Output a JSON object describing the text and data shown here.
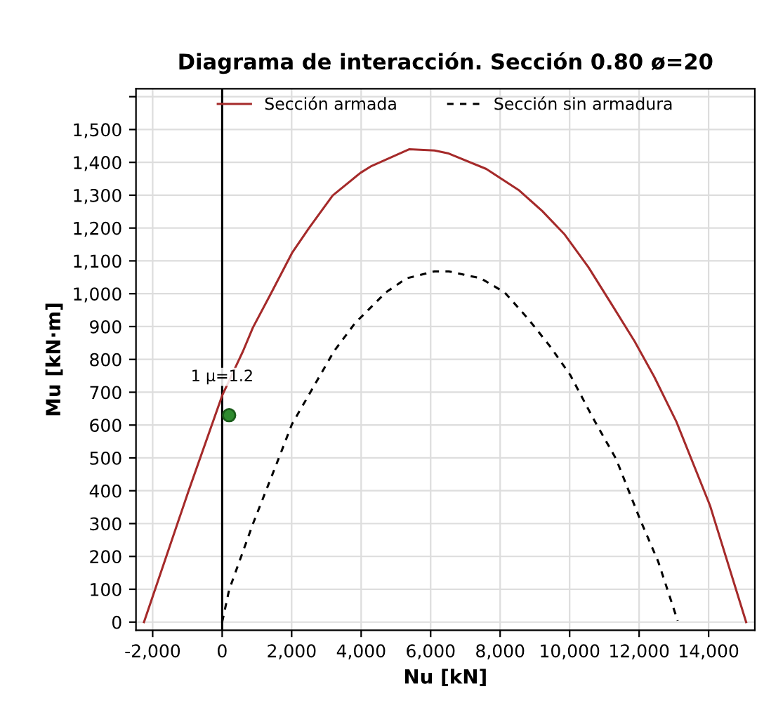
{
  "chart_data": {
    "type": "line",
    "title": "Diagrama de interacción. Sección 0.80 ø=20",
    "xlabel": "Nu [kN]",
    "ylabel": "Mu [kN·m]",
    "xlim": [
      -2480,
      15330
    ],
    "ylim": [
      -25,
      1624
    ],
    "xticks": [
      {
        "value": -2000,
        "label": "-2,000"
      },
      0,
      {
        "value": 2000,
        "label": "2,000"
      },
      {
        "value": 4000,
        "label": "4,000"
      },
      {
        "value": 6000,
        "label": "6,000"
      },
      {
        "value": 8000,
        "label": "8,000"
      },
      {
        "value": 10000,
        "label": "10,000"
      },
      {
        "value": 12000,
        "label": "12,000"
      },
      {
        "value": 14000,
        "label": "14,000"
      }
    ],
    "yticks": [
      0,
      100,
      200,
      300,
      400,
      500,
      600,
      700,
      800,
      900,
      {
        "value": 1000,
        "label": "1,000"
      },
      {
        "value": 1100,
        "label": "1,100"
      },
      {
        "value": 1200,
        "label": "1,200"
      },
      {
        "value": 1300,
        "label": "1,300"
      },
      {
        "value": 1400,
        "label": "1,400"
      },
      {
        "value": 1500,
        "label": "1,500"
      },
      {
        "value": 1600,
        "label": null
      }
    ],
    "grid": true,
    "legend": "top",
    "marker": "none",
    "ref_lines": [
      {
        "axis": "x",
        "value": 0,
        "color": "#000000",
        "line_style": "solid"
      }
    ],
    "annotations": [
      {
        "text": "1 μ=1.2",
        "x": 0,
        "y": 700
      }
    ],
    "series": [
      {
        "name": "Sección armada",
        "color": "#a52a2a",
        "line_style": "solid",
        "x": [
          -2250,
          -1287,
          -965,
          0,
          600,
          885,
          1400,
          2010,
          2500,
          3180,
          3980,
          4300,
          5390,
          6110,
          6520,
          7600,
          8530,
          9210,
          9860,
          10540,
          11220,
          11870,
          12430,
          13070,
          14040,
          15080
        ],
        "values": [
          0,
          300,
          400,
          690,
          825,
          897,
          1000,
          1124,
          1200,
          1299,
          1368,
          1389,
          1440,
          1436,
          1427,
          1380,
          1316,
          1252,
          1180,
          1081,
          966,
          855,
          748,
          611,
          355,
          0
        ]
      },
      {
        "name": "Sección sin armadura",
        "color": "#000000",
        "line_style": "dashed",
        "x": [
          0,
          200,
          885,
          1570,
          2010,
          3220,
          3820,
          4710,
          5310,
          6110,
          6520,
          7440,
          8130,
          8810,
          9450,
          10020,
          10660,
          11340,
          12030,
          12550,
          13110
        ],
        "values": [
          0,
          98,
          299,
          483,
          603,
          825,
          910,
          1004,
          1047,
          1068,
          1068,
          1047,
          1004,
          923,
          838,
          752,
          624,
          496,
          312,
          184,
          4
        ]
      },
      {
        "type": "scatter",
        "color": "#2e8b2e",
        "marker": "circle",
        "x": [
          200
        ],
        "values": [
          630
        ]
      }
    ]
  }
}
